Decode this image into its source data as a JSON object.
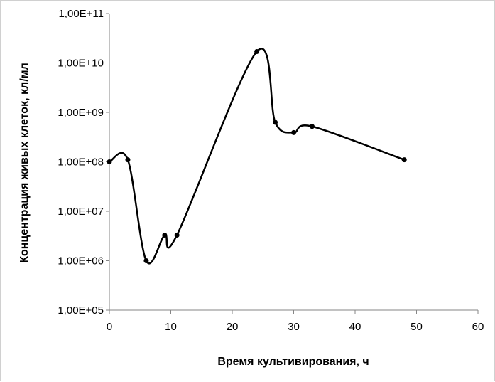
{
  "chart_data": {
    "type": "line",
    "title": "",
    "xlabel": "Время культивирования,  ч",
    "ylabel": "Концентрация живых клеток, кл/мл",
    "xlim": [
      0,
      60
    ],
    "ylim": [
      100000,
      100000000000
    ],
    "yscale": "log",
    "grid": false,
    "legend": "none",
    "x_ticks": [
      0,
      10,
      20,
      30,
      40,
      50,
      60
    ],
    "x_tick_labels": [
      "0",
      "10",
      "20",
      "30",
      "40",
      "50",
      "60"
    ],
    "y_ticks": [
      100000,
      1000000,
      10000000,
      100000000,
      1000000000,
      10000000000,
      100000000000
    ],
    "y_tick_labels": [
      "1,00E+05",
      "1,00E+06",
      "1,00E+07",
      "1,00E+08",
      "1,00E+09",
      "1,00E+10",
      "1,00E+11"
    ],
    "series": [
      {
        "x": [
          0,
          3,
          6,
          9,
          11,
          24,
          27,
          30,
          33,
          48
        ],
        "y": [
          100000000,
          110000000,
          1000000,
          3300000,
          3300000,
          17000000000,
          630000000,
          390000000,
          520000000,
          110000000
        ],
        "color": "#000000",
        "smooth": true
      }
    ]
  }
}
